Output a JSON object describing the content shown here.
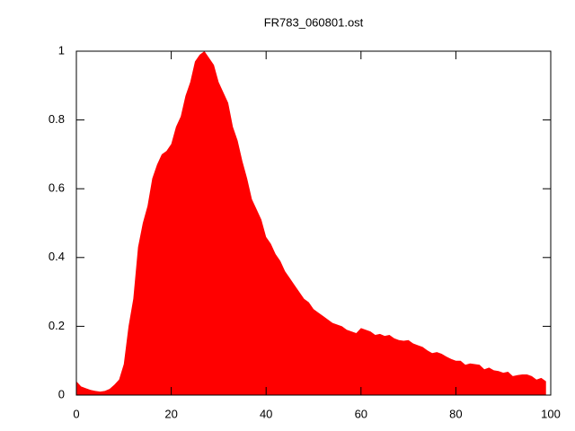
{
  "chart_data": {
    "type": "area",
    "title": "FR783_060801.ost",
    "color": "#ff0000",
    "x": [
      0,
      1,
      2,
      3,
      4,
      5,
      6,
      7,
      8,
      9,
      10,
      11,
      12,
      13,
      14,
      15,
      16,
      17,
      18,
      19,
      20,
      21,
      22,
      23,
      24,
      25,
      26,
      27,
      28,
      29,
      30,
      31,
      32,
      33,
      34,
      35,
      36,
      37,
      38,
      39,
      40,
      41,
      42,
      43,
      44,
      45,
      46,
      47,
      48,
      49,
      50,
      51,
      52,
      53,
      54,
      55,
      56,
      57,
      58,
      59,
      60,
      61,
      62,
      63,
      64,
      65,
      66,
      67,
      68,
      69,
      70,
      71,
      72,
      73,
      74,
      75,
      76,
      77,
      78,
      79,
      80,
      81,
      82,
      83,
      84,
      85,
      86,
      87,
      88,
      89,
      90,
      91,
      92,
      93,
      94,
      95,
      96,
      97,
      98,
      99
    ],
    "values": [
      0.04,
      0.025,
      0.02,
      0.015,
      0.012,
      0.01,
      0.012,
      0.018,
      0.03,
      0.045,
      0.09,
      0.2,
      0.28,
      0.43,
      0.5,
      0.55,
      0.63,
      0.67,
      0.7,
      0.71,
      0.73,
      0.78,
      0.81,
      0.87,
      0.91,
      0.97,
      0.99,
      1.0,
      0.98,
      0.96,
      0.91,
      0.88,
      0.85,
      0.78,
      0.74,
      0.68,
      0.63,
      0.57,
      0.54,
      0.51,
      0.46,
      0.44,
      0.41,
      0.39,
      0.36,
      0.34,
      0.32,
      0.3,
      0.28,
      0.27,
      0.25,
      0.24,
      0.23,
      0.22,
      0.21,
      0.205,
      0.2,
      0.19,
      0.185,
      0.18,
      0.195,
      0.19,
      0.185,
      0.175,
      0.178,
      0.172,
      0.175,
      0.165,
      0.16,
      0.158,
      0.16,
      0.15,
      0.145,
      0.14,
      0.13,
      0.122,
      0.125,
      0.12,
      0.112,
      0.105,
      0.1,
      0.1,
      0.088,
      0.092,
      0.09,
      0.088,
      0.075,
      0.08,
      0.072,
      0.07,
      0.065,
      0.068,
      0.055,
      0.058,
      0.06,
      0.06,
      0.055,
      0.045,
      0.05,
      0.04
    ],
    "xlim": [
      0,
      100
    ],
    "xticks": [
      0,
      20,
      40,
      60,
      80,
      100
    ],
    "ylim": [
      0,
      1
    ],
    "yticks": [
      0,
      0.2,
      0.4,
      0.6,
      0.8,
      1
    ]
  }
}
